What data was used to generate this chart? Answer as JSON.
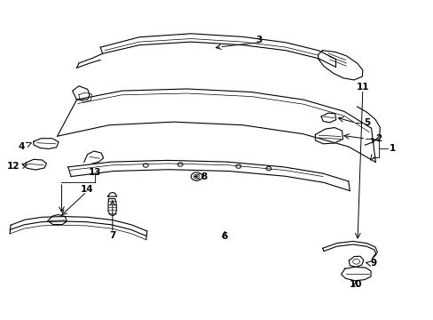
{
  "title": "",
  "bg_color": "#ffffff",
  "line_color": "#000000",
  "label_color": "#000000",
  "fig_width": 4.89,
  "fig_height": 3.6,
  "dpi": 100
}
